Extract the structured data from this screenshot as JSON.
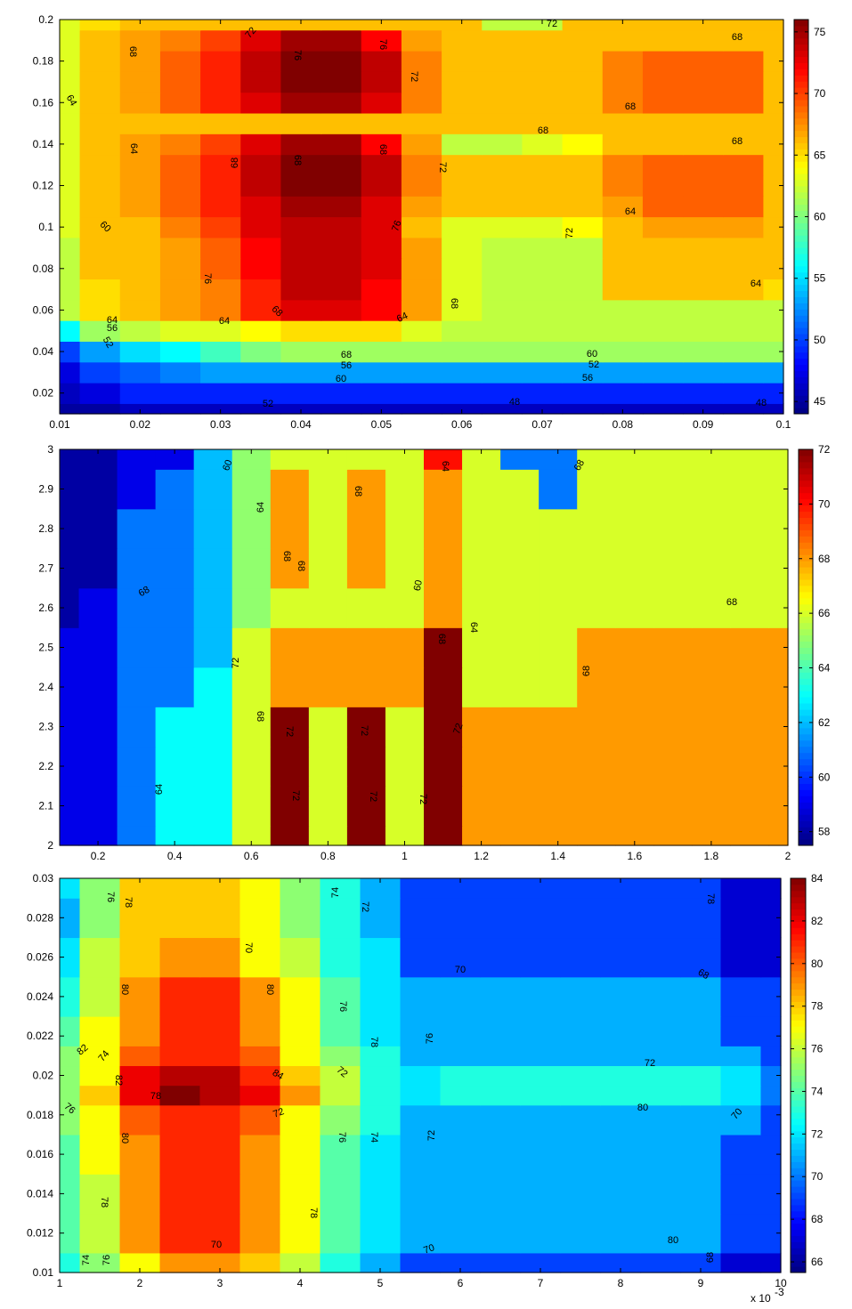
{
  "chart_data": [
    {
      "type": "heatmap",
      "subtype": "filled-contour",
      "title": "",
      "xlabel": "",
      "ylabel": "",
      "xlim": [
        0.01,
        0.1
      ],
      "ylim": [
        0.01,
        0.2
      ],
      "x_ticks": [
        "0.01",
        "0.02",
        "0.03",
        "0.04",
        "0.05",
        "0.06",
        "0.07",
        "0.08",
        "0.09",
        "0.1"
      ],
      "y_ticks": [
        "0.02",
        "0.04",
        "0.06",
        "0.08",
        "0.1",
        "0.12",
        "0.14",
        "0.16",
        "0.18",
        "0.2"
      ],
      "colorbar": {
        "range": [
          44,
          76
        ],
        "ticks": [
          "45",
          "50",
          "55",
          "60",
          "65",
          "70",
          "75"
        ]
      },
      "contour_levels": [
        48,
        52,
        56,
        60,
        64,
        68,
        72,
        76
      ],
      "x": [
        0.01,
        0.015,
        0.02,
        0.025,
        0.03,
        0.035,
        0.04,
        0.045,
        0.05,
        0.055,
        0.06,
        0.065,
        0.07,
        0.075,
        0.08,
        0.085,
        0.09,
        0.095,
        0.1
      ],
      "y": [
        0.01,
        0.02,
        0.03,
        0.04,
        0.05,
        0.06,
        0.07,
        0.08,
        0.09,
        0.1,
        0.11,
        0.12,
        0.13,
        0.14,
        0.15,
        0.16,
        0.17,
        0.18,
        0.19,
        0.2
      ],
      "z": [
        [
          45,
          45,
          46,
          46,
          46,
          46,
          46,
          46,
          46,
          46,
          46,
          46,
          46,
          46,
          46,
          46,
          46,
          46,
          46
        ],
        [
          46,
          47,
          49,
          49,
          49,
          49,
          49,
          49,
          49,
          49,
          49,
          49,
          49,
          49,
          49,
          49,
          49,
          49,
          49
        ],
        [
          47,
          50,
          51,
          52,
          53,
          53,
          53,
          53,
          53,
          53,
          53,
          53,
          53,
          53,
          53,
          53,
          53,
          53,
          53
        ],
        [
          50,
          53,
          55,
          56,
          58,
          60,
          61,
          61,
          61,
          61,
          61,
          61,
          61,
          61,
          61,
          61,
          61,
          61,
          61
        ],
        [
          56,
          61,
          62,
          63,
          63,
          64,
          65,
          65,
          65,
          63,
          62,
          62,
          62,
          62,
          62,
          62,
          62,
          62,
          62
        ],
        [
          62,
          65,
          66,
          67,
          68,
          71,
          73,
          73,
          72,
          67,
          63,
          62,
          62,
          62,
          62,
          62,
          62,
          62,
          62
        ],
        [
          62,
          65,
          66,
          67,
          68,
          71,
          74,
          74,
          72,
          67,
          63,
          62,
          62,
          62,
          66,
          66,
          66,
          66,
          65
        ],
        [
          62,
          66,
          66,
          67,
          69,
          72,
          74,
          74,
          73,
          67,
          63,
          62,
          62,
          62,
          66,
          66,
          66,
          66,
          66
        ],
        [
          62,
          66,
          66,
          67,
          69,
          72,
          74,
          74,
          73,
          67,
          63,
          62,
          62,
          62,
          66,
          66,
          66,
          66,
          66
        ],
        [
          63,
          66,
          66,
          68,
          70,
          73,
          74,
          74,
          73,
          66,
          63,
          63,
          63,
          64,
          66,
          67,
          67,
          67,
          66
        ],
        [
          63,
          66,
          67,
          69,
          71,
          73,
          75,
          75,
          73,
          67,
          66,
          66,
          66,
          66,
          67,
          69,
          69,
          69,
          66
        ],
        [
          63,
          66,
          67,
          69,
          71,
          74,
          77,
          77,
          74,
          68,
          66,
          66,
          66,
          66,
          68,
          69,
          69,
          69,
          66
        ],
        [
          63,
          66,
          67,
          69,
          71,
          74,
          77,
          77,
          74,
          68,
          66,
          66,
          66,
          66,
          68,
          69,
          69,
          69,
          66
        ],
        [
          63,
          66,
          67,
          68,
          70,
          73,
          75,
          75,
          72,
          67,
          62,
          62,
          63,
          64,
          66,
          66,
          66,
          66,
          66
        ],
        [
          63,
          66,
          66,
          66,
          66,
          66,
          66,
          66,
          66,
          66,
          66,
          66,
          66,
          66,
          66,
          66,
          66,
          66,
          66
        ],
        [
          63,
          66,
          67,
          69,
          71,
          73,
          75,
          75,
          73,
          68,
          66,
          66,
          66,
          66,
          68,
          69,
          69,
          69,
          66
        ],
        [
          63,
          66,
          67,
          69,
          71,
          74,
          77,
          77,
          74,
          68,
          66,
          66,
          66,
          66,
          68,
          69,
          69,
          69,
          66
        ],
        [
          63,
          66,
          67,
          69,
          71,
          74,
          77,
          77,
          74,
          68,
          66,
          66,
          66,
          66,
          68,
          69,
          69,
          69,
          66
        ],
        [
          63,
          66,
          67,
          68,
          70,
          73,
          75,
          75,
          72,
          67,
          66,
          66,
          66,
          66,
          66,
          66,
          66,
          66,
          66
        ],
        [
          63,
          65,
          66,
          66,
          66,
          66,
          66,
          66,
          66,
          66,
          66,
          62,
          62,
          66,
          66,
          66,
          66,
          66,
          66
        ]
      ],
      "line_labels": [
        "72",
        "68",
        "76",
        "76",
        "72",
        "64",
        "68",
        "64",
        "68",
        "68",
        "68",
        "72",
        "76",
        "76",
        "68",
        "64",
        "64",
        "68",
        "72",
        "68",
        "68",
        "68",
        "64",
        "60",
        "72",
        "64",
        "64",
        "56",
        "52",
        "68",
        "60",
        "56",
        "52",
        "60",
        "56",
        "52",
        "48",
        "48",
        "48"
      ]
    },
    {
      "type": "heatmap",
      "subtype": "filled-contour",
      "title": "",
      "xlabel": "",
      "ylabel": "",
      "xlim": [
        0.1,
        2
      ],
      "ylim": [
        2,
        3
      ],
      "x_ticks": [
        "0.2",
        "0.4",
        "0.6",
        "0.8",
        "1",
        "1.2",
        "1.4",
        "1.6",
        "1.8",
        "2"
      ],
      "y_ticks": [
        "2",
        "2.1",
        "2.2",
        "2.3",
        "2.4",
        "2.5",
        "2.6",
        "2.7",
        "2.8",
        "2.9",
        "3"
      ],
      "colorbar": {
        "range": [
          57.5,
          72
        ],
        "ticks": [
          "58",
          "60",
          "62",
          "64",
          "66",
          "68",
          "70",
          "72"
        ]
      },
      "contour_levels": [
        60,
        64,
        68,
        72
      ],
      "x": [
        0.1,
        0.2,
        0.3,
        0.4,
        0.5,
        0.6,
        0.7,
        0.8,
        0.9,
        1.0,
        1.1,
        1.2,
        1.3,
        1.4,
        1.5,
        1.6,
        1.7,
        1.8,
        1.9,
        2.0
      ],
      "y": [
        2.0,
        2.1,
        2.2,
        2.3,
        2.4,
        2.5,
        2.6,
        2.7,
        2.8,
        2.9,
        3.0
      ],
      "z": [
        [
          59,
          59,
          61,
          63,
          63,
          66,
          72,
          66,
          72,
          66,
          72,
          68,
          68,
          68,
          68,
          68,
          68,
          68,
          68,
          68
        ],
        [
          59,
          59,
          61,
          63,
          63,
          66,
          72,
          66,
          72,
          66,
          72,
          68,
          68,
          68,
          68,
          68,
          68,
          68,
          68,
          68
        ],
        [
          59,
          59,
          61,
          63,
          63,
          66,
          72,
          66,
          72,
          66,
          72,
          68,
          68,
          68,
          68,
          68,
          68,
          68,
          68,
          68
        ],
        [
          59,
          59,
          61,
          63,
          63,
          66,
          72,
          66,
          72,
          66,
          72,
          68,
          68,
          68,
          68,
          68,
          68,
          68,
          68,
          68
        ],
        [
          59,
          59,
          61,
          61,
          63,
          66,
          68,
          68,
          68,
          68,
          72,
          66,
          66,
          66,
          68,
          68,
          68,
          68,
          68,
          68
        ],
        [
          59,
          59,
          61,
          61,
          62,
          66,
          68,
          68,
          68,
          68,
          72,
          66,
          66,
          66,
          68,
          68,
          68,
          68,
          68,
          68
        ],
        [
          58,
          59,
          61,
          61,
          62,
          65,
          66,
          66,
          66,
          66,
          68,
          66,
          66,
          66,
          66,
          66,
          66,
          66,
          66,
          66
        ],
        [
          58,
          58,
          61,
          61,
          62,
          65,
          68,
          66,
          68,
          66,
          68,
          66,
          66,
          66,
          66,
          66,
          66,
          66,
          66,
          66
        ],
        [
          58,
          58,
          61,
          61,
          62,
          65,
          68,
          66,
          68,
          66,
          68,
          66,
          66,
          66,
          66,
          66,
          66,
          66,
          66,
          66
        ],
        [
          58,
          58,
          59,
          61,
          62,
          65,
          68,
          66,
          68,
          66,
          68,
          66,
          66,
          61,
          66,
          66,
          66,
          66,
          66,
          66
        ],
        [
          58,
          58,
          59,
          59,
          62,
          65,
          66,
          66,
          66,
          66,
          70,
          66,
          61,
          61,
          66,
          66,
          66,
          66,
          66,
          66
        ]
      ],
      "line_labels": [
        "60",
        "68",
        "68",
        "64",
        "64",
        "68",
        "68",
        "68",
        "60",
        "68",
        "64",
        "68",
        "72",
        "68",
        "68",
        "72",
        "72",
        "72",
        "64",
        "72",
        "72",
        "72",
        "68"
      ]
    },
    {
      "type": "heatmap",
      "subtype": "filled-contour",
      "title": "",
      "xlabel": "",
      "ylabel": "",
      "x_multiplier": "x 10",
      "x_multiplier_exp": "-3",
      "xlim": [
        1,
        10
      ],
      "ylim": [
        0.01,
        0.03
      ],
      "x_ticks": [
        "1",
        "2",
        "3",
        "4",
        "5",
        "6",
        "7",
        "8",
        "9",
        "10"
      ],
      "y_ticks": [
        "0.01",
        "0.012",
        "0.014",
        "0.016",
        "0.018",
        "0.02",
        "0.022",
        "0.024",
        "0.026",
        "0.028",
        "0.03"
      ],
      "colorbar": {
        "range": [
          65.5,
          84
        ],
        "ticks": [
          "66",
          "68",
          "70",
          "72",
          "74",
          "76",
          "78",
          "80",
          "82",
          "84"
        ]
      },
      "contour_levels": [
        68,
        70,
        72,
        74,
        76,
        78,
        80,
        82,
        84
      ],
      "x": [
        1,
        1.5,
        2,
        2.5,
        3,
        3.5,
        4,
        4.5,
        5,
        5.5,
        6,
        6.5,
        7,
        7.5,
        8,
        8.5,
        9,
        9.5,
        10
      ],
      "y": [
        0.01,
        0.012,
        0.014,
        0.016,
        0.018,
        0.019,
        0.02,
        0.021,
        0.022,
        0.024,
        0.026,
        0.028,
        0.03
      ],
      "z": [
        [
          73,
          75,
          77,
          79,
          79,
          78,
          76,
          73,
          71,
          69,
          69,
          69,
          69,
          69,
          69,
          69,
          69,
          67,
          67
        ],
        [
          74,
          76,
          79,
          81,
          81,
          79,
          77,
          74,
          72,
          71,
          71,
          71,
          71,
          71,
          71,
          71,
          71,
          69,
          69
        ],
        [
          74,
          76,
          79,
          81,
          81,
          79,
          77,
          74,
          72,
          71,
          71,
          71,
          71,
          71,
          71,
          71,
          71,
          69,
          69
        ],
        [
          74,
          77,
          79,
          81,
          81,
          79,
          77,
          74,
          72,
          71,
          71,
          71,
          71,
          71,
          71,
          71,
          71,
          69,
          69
        ],
        [
          75,
          77,
          80,
          81,
          81,
          80,
          77,
          75,
          73,
          71,
          71,
          71,
          71,
          71,
          71,
          71,
          71,
          71,
          69
        ],
        [
          75,
          78,
          82,
          85,
          83,
          82,
          79,
          76,
          73,
          72,
          73,
          73,
          73,
          73,
          73,
          73,
          73,
          72,
          70
        ],
        [
          75,
          77,
          82,
          83,
          83,
          81,
          78,
          76,
          73,
          72,
          73,
          73,
          73,
          73,
          73,
          73,
          73,
          72,
          70
        ],
        [
          75,
          77,
          80,
          81,
          81,
          80,
          77,
          75,
          73,
          71,
          71,
          71,
          71,
          71,
          71,
          71,
          71,
          71,
          69
        ],
        [
          74,
          77,
          79,
          81,
          81,
          79,
          77,
          74,
          72,
          71,
          71,
          71,
          71,
          71,
          71,
          71,
          71,
          69,
          69
        ],
        [
          73,
          76,
          79,
          81,
          81,
          79,
          77,
          74,
          72,
          71,
          71,
          71,
          71,
          71,
          71,
          71,
          71,
          69,
          69
        ],
        [
          72,
          76,
          78,
          79,
          79,
          77,
          76,
          73,
          72,
          69,
          69,
          69,
          69,
          69,
          69,
          69,
          69,
          67,
          67
        ],
        [
          71,
          75,
          78,
          78,
          78,
          77,
          75,
          73,
          71,
          69,
          69,
          69,
          69,
          69,
          69,
          69,
          69,
          67,
          67
        ],
        [
          72,
          75,
          78,
          78,
          78,
          77,
          75,
          73,
          71,
          69,
          69,
          69,
          69,
          69,
          69,
          69,
          69,
          67,
          67
        ]
      ],
      "line_labels": [
        "76",
        "78",
        "74",
        "72",
        "78",
        "70",
        "70",
        "68",
        "80",
        "80",
        "76",
        "76",
        "78",
        "82",
        "74",
        "72",
        "72",
        "82",
        "84",
        "78",
        "80",
        "72",
        "70",
        "76",
        "80",
        "76",
        "74",
        "72",
        "78",
        "78",
        "70",
        "80",
        "70",
        "74",
        "76",
        "68"
      ]
    }
  ]
}
